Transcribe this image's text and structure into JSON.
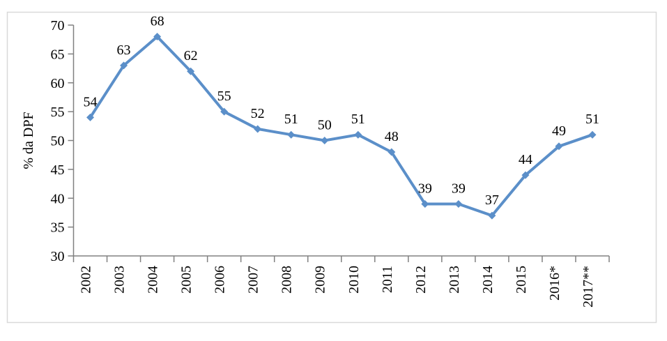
{
  "chart_data": {
    "type": "line",
    "title": "",
    "xlabel": "",
    "ylabel": "% da DPF",
    "categories": [
      "2002",
      "2003",
      "2004",
      "2005",
      "2006",
      "2007",
      "2008",
      "2009",
      "2010",
      "2011",
      "2012",
      "2013",
      "2014",
      "2015",
      "2016*",
      "2017**"
    ],
    "series": [
      {
        "name": "% da DPF",
        "values": [
          54,
          63,
          68,
          62,
          55,
          52,
          51,
          50,
          51,
          48,
          39,
          39,
          37,
          44,
          49,
          51
        ]
      }
    ],
    "data_labels_shown": true,
    "ylim": [
      30,
      70
    ],
    "ytick_step": 5,
    "yticks": [
      30,
      35,
      40,
      45,
      50,
      55,
      60,
      65,
      70
    ],
    "grid": false,
    "legend": "none",
    "x_tick_label_rotation_deg": -90,
    "marker": "diamond",
    "colors": {
      "line": "#5B8FC9",
      "marker": "#5B8FC9",
      "axis": "#808080",
      "tick": "#808080",
      "text": "#000000",
      "frame_border": "#D9D9D9",
      "background": "#FFFFFF"
    }
  }
}
